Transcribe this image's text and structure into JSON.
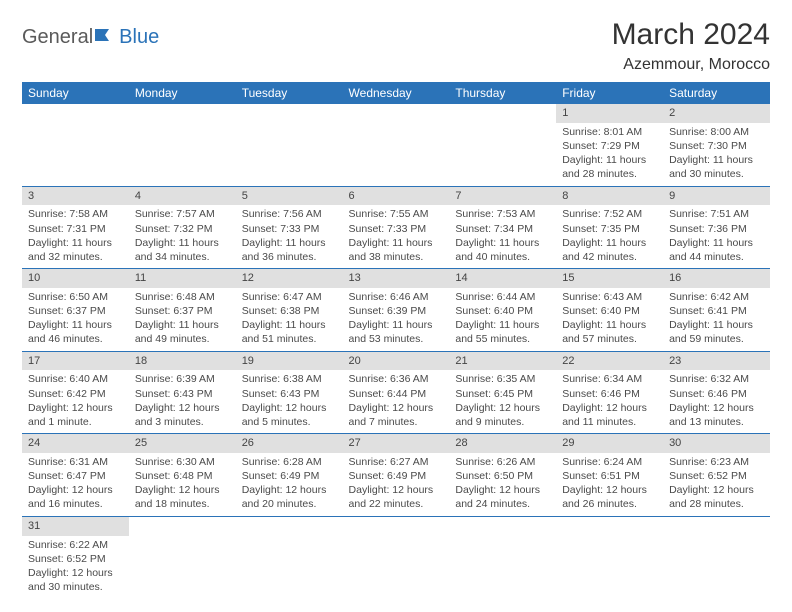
{
  "logo": {
    "general": "General",
    "blue": "Blue"
  },
  "title": "March 2024",
  "location": "Azemmour, Morocco",
  "colors": {
    "header_bg": "#2b73b8",
    "header_text": "#ffffff",
    "daynum_bg": "#e0e0e0",
    "border": "#2b73b8",
    "body_text": "#4a4a4a"
  },
  "weekdays": [
    "Sunday",
    "Monday",
    "Tuesday",
    "Wednesday",
    "Thursday",
    "Friday",
    "Saturday"
  ],
  "weeks": [
    [
      {
        "n": "",
        "sr": "",
        "ss": "",
        "dl": ""
      },
      {
        "n": "",
        "sr": "",
        "ss": "",
        "dl": ""
      },
      {
        "n": "",
        "sr": "",
        "ss": "",
        "dl": ""
      },
      {
        "n": "",
        "sr": "",
        "ss": "",
        "dl": ""
      },
      {
        "n": "",
        "sr": "",
        "ss": "",
        "dl": ""
      },
      {
        "n": "1",
        "sr": "Sunrise: 8:01 AM",
        "ss": "Sunset: 7:29 PM",
        "dl": "Daylight: 11 hours and 28 minutes."
      },
      {
        "n": "2",
        "sr": "Sunrise: 8:00 AM",
        "ss": "Sunset: 7:30 PM",
        "dl": "Daylight: 11 hours and 30 minutes."
      }
    ],
    [
      {
        "n": "3",
        "sr": "Sunrise: 7:58 AM",
        "ss": "Sunset: 7:31 PM",
        "dl": "Daylight: 11 hours and 32 minutes."
      },
      {
        "n": "4",
        "sr": "Sunrise: 7:57 AM",
        "ss": "Sunset: 7:32 PM",
        "dl": "Daylight: 11 hours and 34 minutes."
      },
      {
        "n": "5",
        "sr": "Sunrise: 7:56 AM",
        "ss": "Sunset: 7:33 PM",
        "dl": "Daylight: 11 hours and 36 minutes."
      },
      {
        "n": "6",
        "sr": "Sunrise: 7:55 AM",
        "ss": "Sunset: 7:33 PM",
        "dl": "Daylight: 11 hours and 38 minutes."
      },
      {
        "n": "7",
        "sr": "Sunrise: 7:53 AM",
        "ss": "Sunset: 7:34 PM",
        "dl": "Daylight: 11 hours and 40 minutes."
      },
      {
        "n": "8",
        "sr": "Sunrise: 7:52 AM",
        "ss": "Sunset: 7:35 PM",
        "dl": "Daylight: 11 hours and 42 minutes."
      },
      {
        "n": "9",
        "sr": "Sunrise: 7:51 AM",
        "ss": "Sunset: 7:36 PM",
        "dl": "Daylight: 11 hours and 44 minutes."
      }
    ],
    [
      {
        "n": "10",
        "sr": "Sunrise: 6:50 AM",
        "ss": "Sunset: 6:37 PM",
        "dl": "Daylight: 11 hours and 46 minutes."
      },
      {
        "n": "11",
        "sr": "Sunrise: 6:48 AM",
        "ss": "Sunset: 6:37 PM",
        "dl": "Daylight: 11 hours and 49 minutes."
      },
      {
        "n": "12",
        "sr": "Sunrise: 6:47 AM",
        "ss": "Sunset: 6:38 PM",
        "dl": "Daylight: 11 hours and 51 minutes."
      },
      {
        "n": "13",
        "sr": "Sunrise: 6:46 AM",
        "ss": "Sunset: 6:39 PM",
        "dl": "Daylight: 11 hours and 53 minutes."
      },
      {
        "n": "14",
        "sr": "Sunrise: 6:44 AM",
        "ss": "Sunset: 6:40 PM",
        "dl": "Daylight: 11 hours and 55 minutes."
      },
      {
        "n": "15",
        "sr": "Sunrise: 6:43 AM",
        "ss": "Sunset: 6:40 PM",
        "dl": "Daylight: 11 hours and 57 minutes."
      },
      {
        "n": "16",
        "sr": "Sunrise: 6:42 AM",
        "ss": "Sunset: 6:41 PM",
        "dl": "Daylight: 11 hours and 59 minutes."
      }
    ],
    [
      {
        "n": "17",
        "sr": "Sunrise: 6:40 AM",
        "ss": "Sunset: 6:42 PM",
        "dl": "Daylight: 12 hours and 1 minute."
      },
      {
        "n": "18",
        "sr": "Sunrise: 6:39 AM",
        "ss": "Sunset: 6:43 PM",
        "dl": "Daylight: 12 hours and 3 minutes."
      },
      {
        "n": "19",
        "sr": "Sunrise: 6:38 AM",
        "ss": "Sunset: 6:43 PM",
        "dl": "Daylight: 12 hours and 5 minutes."
      },
      {
        "n": "20",
        "sr": "Sunrise: 6:36 AM",
        "ss": "Sunset: 6:44 PM",
        "dl": "Daylight: 12 hours and 7 minutes."
      },
      {
        "n": "21",
        "sr": "Sunrise: 6:35 AM",
        "ss": "Sunset: 6:45 PM",
        "dl": "Daylight: 12 hours and 9 minutes."
      },
      {
        "n": "22",
        "sr": "Sunrise: 6:34 AM",
        "ss": "Sunset: 6:46 PM",
        "dl": "Daylight: 12 hours and 11 minutes."
      },
      {
        "n": "23",
        "sr": "Sunrise: 6:32 AM",
        "ss": "Sunset: 6:46 PM",
        "dl": "Daylight: 12 hours and 13 minutes."
      }
    ],
    [
      {
        "n": "24",
        "sr": "Sunrise: 6:31 AM",
        "ss": "Sunset: 6:47 PM",
        "dl": "Daylight: 12 hours and 16 minutes."
      },
      {
        "n": "25",
        "sr": "Sunrise: 6:30 AM",
        "ss": "Sunset: 6:48 PM",
        "dl": "Daylight: 12 hours and 18 minutes."
      },
      {
        "n": "26",
        "sr": "Sunrise: 6:28 AM",
        "ss": "Sunset: 6:49 PM",
        "dl": "Daylight: 12 hours and 20 minutes."
      },
      {
        "n": "27",
        "sr": "Sunrise: 6:27 AM",
        "ss": "Sunset: 6:49 PM",
        "dl": "Daylight: 12 hours and 22 minutes."
      },
      {
        "n": "28",
        "sr": "Sunrise: 6:26 AM",
        "ss": "Sunset: 6:50 PM",
        "dl": "Daylight: 12 hours and 24 minutes."
      },
      {
        "n": "29",
        "sr": "Sunrise: 6:24 AM",
        "ss": "Sunset: 6:51 PM",
        "dl": "Daylight: 12 hours and 26 minutes."
      },
      {
        "n": "30",
        "sr": "Sunrise: 6:23 AM",
        "ss": "Sunset: 6:52 PM",
        "dl": "Daylight: 12 hours and 28 minutes."
      }
    ],
    [
      {
        "n": "31",
        "sr": "Sunrise: 6:22 AM",
        "ss": "Sunset: 6:52 PM",
        "dl": "Daylight: 12 hours and 30 minutes."
      },
      {
        "n": "",
        "sr": "",
        "ss": "",
        "dl": ""
      },
      {
        "n": "",
        "sr": "",
        "ss": "",
        "dl": ""
      },
      {
        "n": "",
        "sr": "",
        "ss": "",
        "dl": ""
      },
      {
        "n": "",
        "sr": "",
        "ss": "",
        "dl": ""
      },
      {
        "n": "",
        "sr": "",
        "ss": "",
        "dl": ""
      },
      {
        "n": "",
        "sr": "",
        "ss": "",
        "dl": ""
      }
    ]
  ]
}
